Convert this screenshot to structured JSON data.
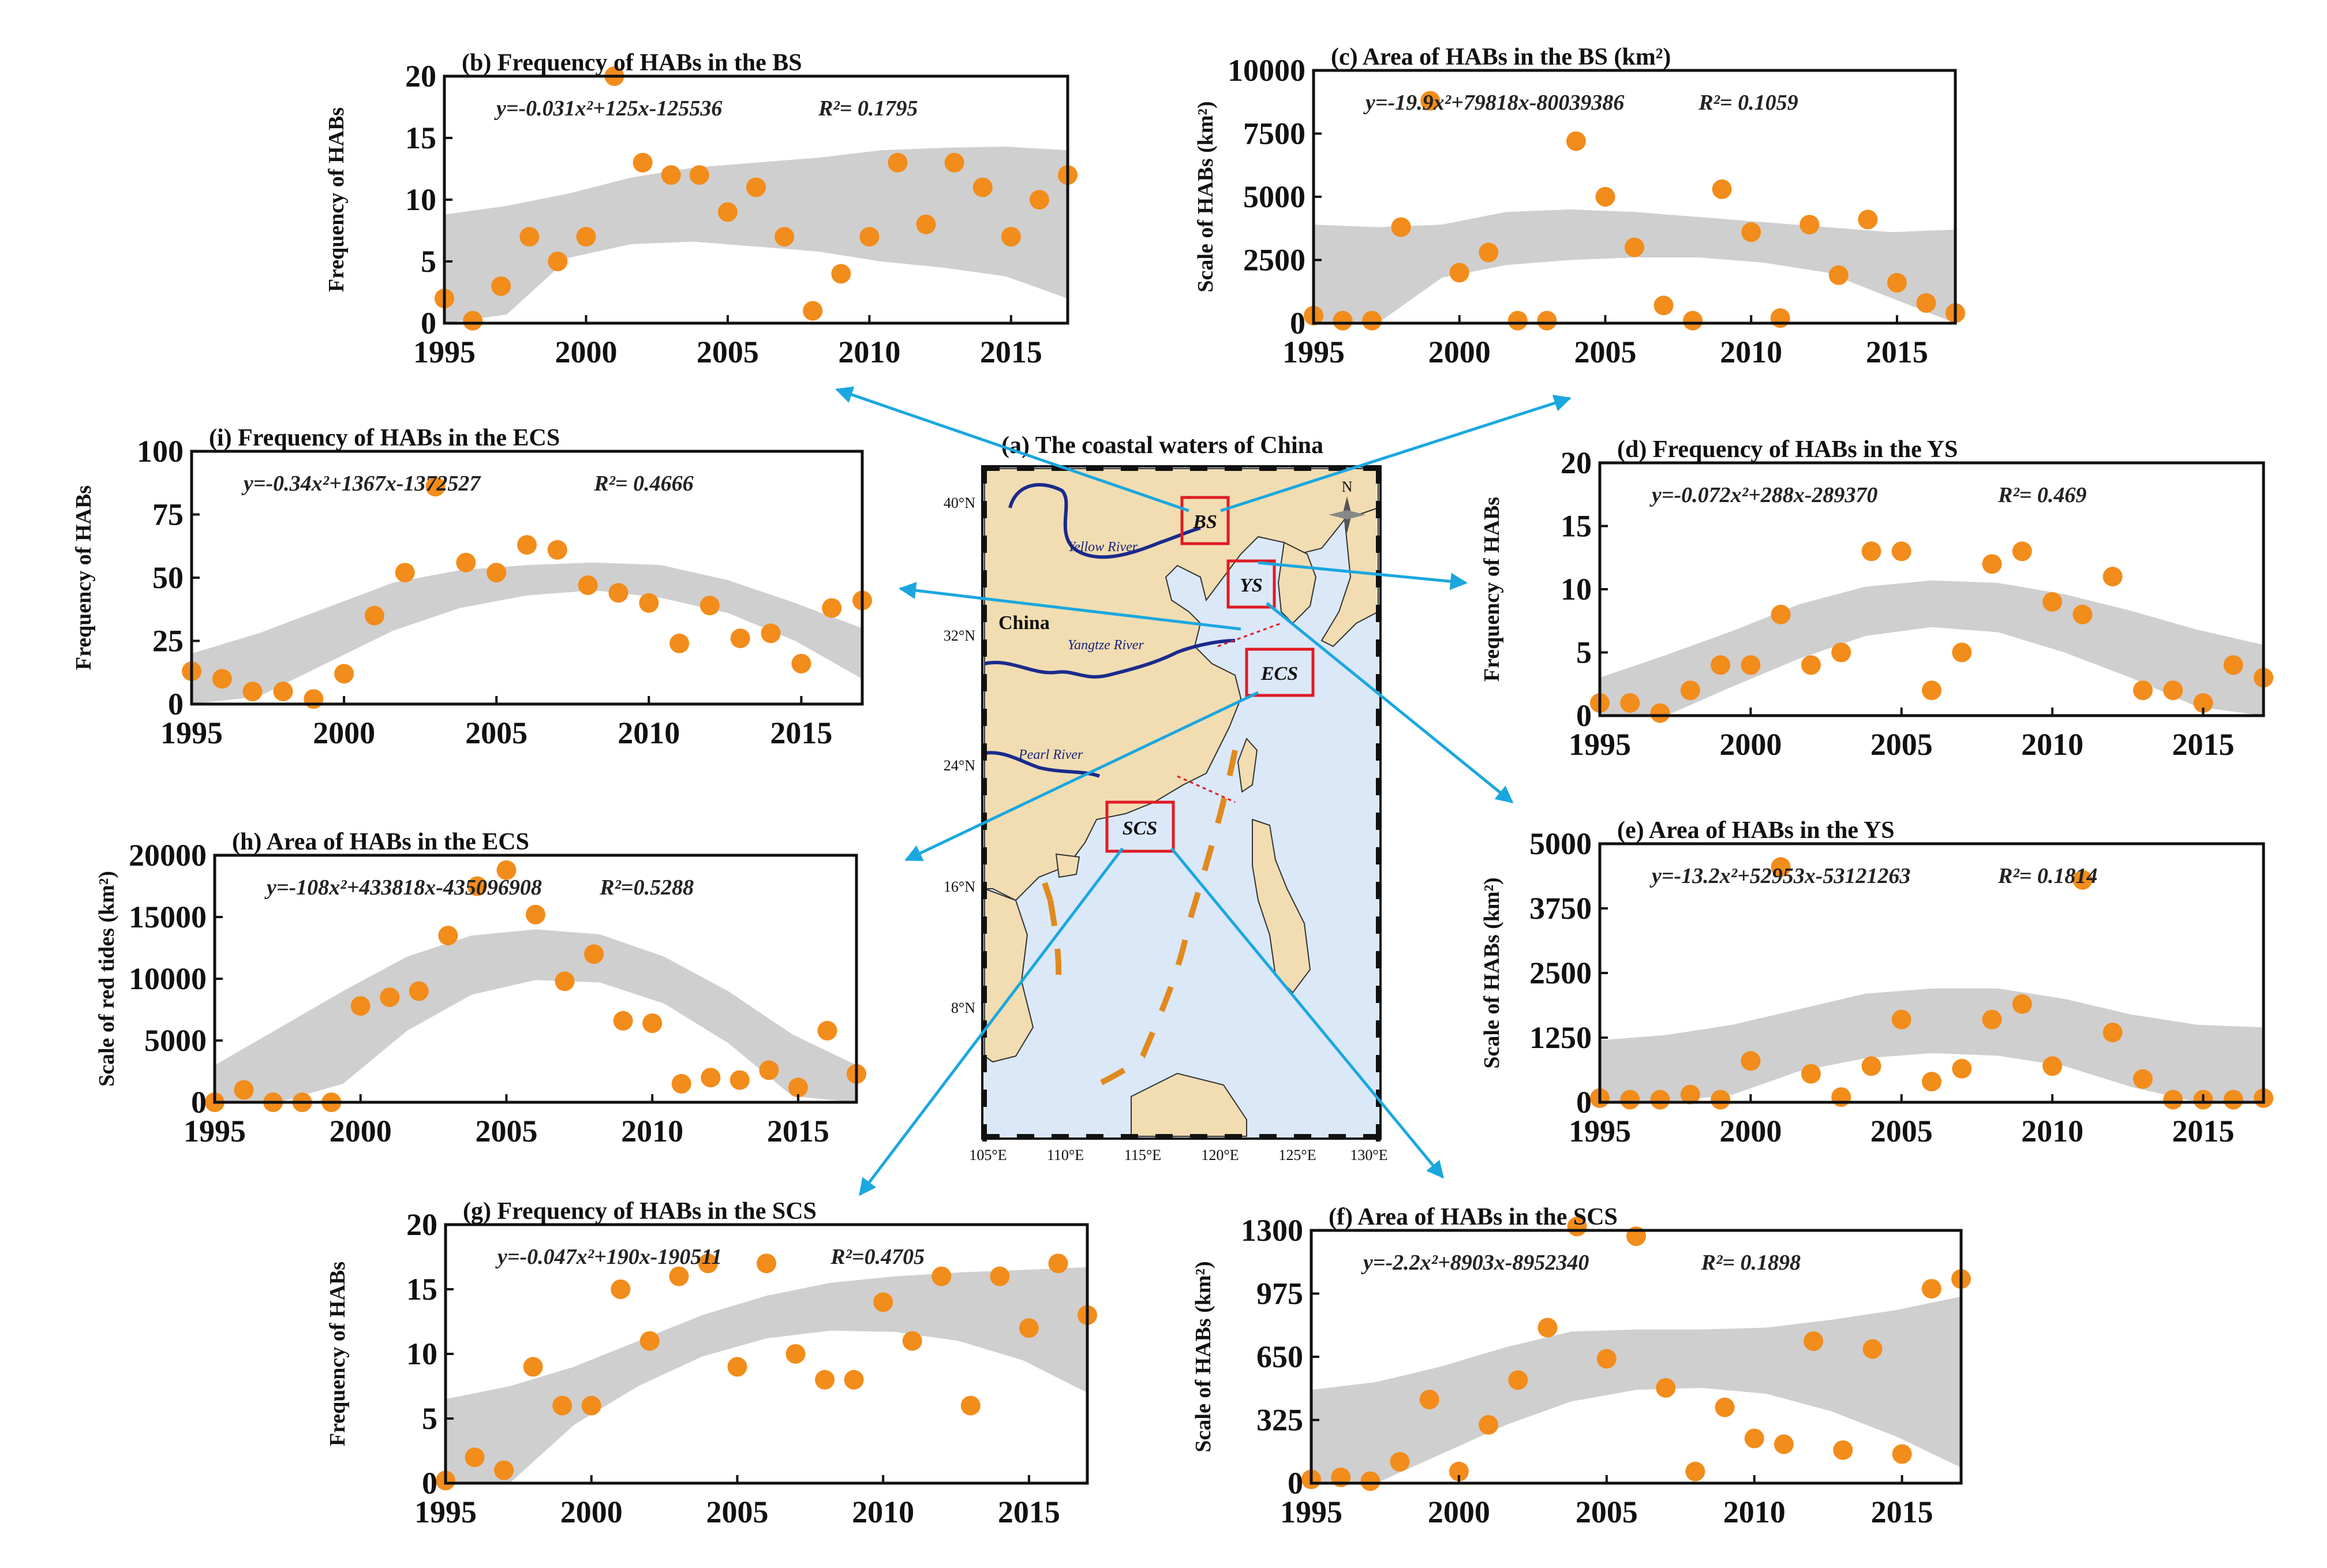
{
  "figure": {
    "map": {
      "title": "(a) The coastal waters of China",
      "country_label": "China",
      "north_label": "N",
      "rivers": [
        "Yellow River",
        "Yangtze River",
        "Pearl River"
      ],
      "regions": [
        "BS",
        "YS",
        "ECS",
        "SCS"
      ],
      "lat_ticks": [
        "40°N",
        "32°N",
        "24°N",
        "16°N",
        "8°N"
      ],
      "lon_ticks": [
        "105°E",
        "110°E",
        "115°E",
        "120°E",
        "125°E",
        "130°E"
      ],
      "colors": {
        "sea": "#dbe8f8",
        "land": "#f1ddb1",
        "river": "#1a2a8c",
        "region_box": "#e01b24"
      }
    },
    "colors": {
      "points": "#f28c1b",
      "fit": "#f28c1b",
      "band": "#cfcfcf",
      "arrow": "#1aa7e0"
    }
  },
  "chart_data": [
    {
      "id": "b",
      "type": "scatter",
      "title": "(b) Frequency of HABs in the BS",
      "xlabel": "",
      "ylabel": "Frequency of HABs",
      "equation": "y=-0.031x²+125x-125536",
      "r2": "R²= 0.1795",
      "xlim": [
        1995,
        2017
      ],
      "ylim": [
        0,
        20
      ],
      "xticks": [
        1995,
        2000,
        2005,
        2010,
        2015
      ],
      "yticks": [
        0,
        5,
        10,
        15,
        20
      ],
      "x": [
        1995,
        1996,
        1997,
        1998,
        1999,
        2000,
        2001,
        2002,
        2003,
        2004,
        2005,
        2006,
        2007,
        2008,
        2009,
        2010,
        2011,
        2012,
        2013,
        2014,
        2015,
        2016,
        2017
      ],
      "y": [
        2,
        0.2,
        3,
        7,
        5,
        7,
        20,
        13,
        12,
        12,
        9,
        11,
        7,
        1,
        4,
        7,
        13,
        8,
        13,
        11,
        7,
        10,
        12
      ],
      "fit": [
        -0.031,
        125,
        -125536
      ],
      "band_lower": [
        0,
        0.7,
        5.3,
        6.4,
        6.6,
        6.2,
        5.8,
        5.0,
        4.5,
        3.8,
        2.0
      ],
      "band_upper": [
        8.8,
        9.5,
        10.5,
        11.8,
        12.6,
        13.0,
        13.4,
        14.0,
        14.2,
        14.3,
        14.0
      ]
    },
    {
      "id": "c",
      "type": "scatter",
      "title": "(c) Area of HABs in the BS (km²)",
      "xlabel": "",
      "ylabel": "Scale of HABs (km²)",
      "equation": "y=-19.9x²+79818x-80039386",
      "r2": "R²= 0.1059",
      "xlim": [
        1995,
        2017
      ],
      "ylim": [
        0,
        10000
      ],
      "xticks": [
        1995,
        2000,
        2005,
        2010,
        2015
      ],
      "yticks": [
        0,
        2500,
        5000,
        7500,
        10000
      ],
      "x": [
        1995,
        1996,
        1997,
        1998,
        1999,
        2000,
        2001,
        2002,
        2003,
        2004,
        2005,
        2006,
        2007,
        2008,
        2009,
        2010,
        2011,
        2012,
        2013,
        2014,
        2015,
        2016,
        2017
      ],
      "y": [
        300,
        100,
        100,
        3800,
        8800,
        2000,
        2800,
        100,
        100,
        7200,
        5000,
        3000,
        700,
        100,
        5300,
        3600,
        200,
        3900,
        1900,
        4100,
        1600,
        800,
        400
      ],
      "fit": [
        -19.9,
        79818,
        -80039386
      ],
      "band_lower": [
        0,
        0,
        1800,
        2300,
        2500,
        2600,
        2600,
        2400,
        2000,
        1000,
        0
      ],
      "band_upper": [
        3900,
        3800,
        3900,
        4400,
        4500,
        4400,
        4200,
        4000,
        3800,
        3600,
        3700
      ]
    },
    {
      "id": "d",
      "type": "scatter",
      "title": "(d) Frequency of HABs in the YS",
      "xlabel": "",
      "ylabel": "Frequency of HABs",
      "equation": "y=-0.072x²+288x-289370",
      "r2": "R²= 0.469",
      "xlim": [
        1995,
        2017
      ],
      "ylim": [
        0,
        20
      ],
      "xticks": [
        1995,
        2000,
        2005,
        2010,
        2015
      ],
      "yticks": [
        0,
        5,
        10,
        15,
        20
      ],
      "x": [
        1995,
        1996,
        1997,
        1998,
        1999,
        2000,
        2001,
        2002,
        2003,
        2004,
        2005,
        2006,
        2007,
        2008,
        2009,
        2010,
        2011,
        2012,
        2013,
        2014,
        2015,
        2016,
        2017
      ],
      "y": [
        1,
        1,
        0.2,
        2,
        4,
        4,
        8,
        4,
        5,
        13,
        13,
        2,
        5,
        12,
        13,
        9,
        8,
        11,
        2,
        2,
        1,
        4,
        3
      ],
      "fit": [
        -0.072,
        288,
        -289370
      ],
      "band_lower": [
        0,
        0,
        2.3,
        4.5,
        6.3,
        7.0,
        6.6,
        5.0,
        3.0,
        0.7,
        0
      ],
      "band_upper": [
        3.0,
        4.8,
        6.7,
        8.8,
        10.2,
        10.7,
        10.5,
        9.6,
        8.3,
        6.8,
        5.6
      ]
    },
    {
      "id": "e",
      "type": "scatter",
      "title": "(e) Area of HABs in the YS",
      "xlabel": "",
      "ylabel": "Scale of HABs (km²)",
      "equation": "y=-13.2x²+52953x-53121263",
      "r2": "R²= 0.1814",
      "xlim": [
        1995,
        2017
      ],
      "ylim": [
        0,
        5000
      ],
      "xticks": [
        1995,
        2000,
        2005,
        2010,
        2015
      ],
      "yticks": [
        0,
        1250,
        2500,
        3750,
        5000
      ],
      "x": [
        1995,
        1996,
        1997,
        1998,
        1999,
        2000,
        2001,
        2002,
        2003,
        2004,
        2005,
        2006,
        2007,
        2008,
        2009,
        2010,
        2011,
        2012,
        2013,
        2014,
        2015,
        2016,
        2017
      ],
      "y": [
        80,
        50,
        50,
        150,
        50,
        800,
        4550,
        550,
        100,
        700,
        1600,
        400,
        650,
        1600,
        1900,
        700,
        4300,
        1350,
        450,
        50,
        50,
        50,
        80
      ],
      "fit": [
        -13.2,
        52953,
        -53121263
      ],
      "band_lower": [
        0,
        0,
        150,
        600,
        850,
        950,
        900,
        700,
        300,
        0,
        0
      ],
      "band_upper": [
        1200,
        1300,
        1500,
        1800,
        2100,
        2200,
        2200,
        2000,
        1700,
        1500,
        1450
      ]
    },
    {
      "id": "f",
      "type": "scatter",
      "title": "(f) Area of HABs in the SCS",
      "xlabel": "",
      "ylabel": "Scale of HABs (km²)",
      "equation": "y=-2.2x²+8903x-8952340",
      "r2": "R²= 0.1898",
      "xlim": [
        1995,
        2017
      ],
      "ylim": [
        0,
        1300
      ],
      "xticks": [
        1995,
        2000,
        2005,
        2010,
        2015
      ],
      "yticks": [
        0,
        325,
        650,
        975,
        1300
      ],
      "x": [
        1995,
        1996,
        1997,
        1998,
        1999,
        2000,
        2001,
        2002,
        2003,
        2004,
        2005,
        2006,
        2007,
        2008,
        2009,
        2010,
        2011,
        2012,
        2013,
        2014,
        2015,
        2016,
        2017
      ],
      "y": [
        20,
        30,
        10,
        110,
        430,
        60,
        300,
        530,
        800,
        1320,
        640,
        1270,
        490,
        60,
        390,
        230,
        200,
        730,
        170,
        690,
        150,
        1000,
        1050
      ],
      "fit": [
        -2.2,
        8903,
        -8952340
      ],
      "band_lower": [
        0,
        0,
        150,
        300,
        420,
        480,
        490,
        460,
        370,
        240,
        80
      ],
      "band_upper": [
        480,
        520,
        600,
        700,
        780,
        790,
        790,
        800,
        840,
        890,
        960
      ]
    },
    {
      "id": "g",
      "type": "scatter",
      "title": "(g) Frequency of HABs in the SCS",
      "xlabel": "",
      "ylabel": "Frequency of HABs",
      "equation": "y=-0.047x²+190x-190511",
      "r2": "R²=0.4705",
      "xlim": [
        1995,
        2017
      ],
      "ylim": [
        0,
        20
      ],
      "xticks": [
        1995,
        2000,
        2005,
        2010,
        2015
      ],
      "yticks": [
        0,
        5,
        10,
        15,
        20
      ],
      "x": [
        1995,
        1996,
        1997,
        1998,
        1999,
        2000,
        2001,
        2002,
        2003,
        2004,
        2005,
        2006,
        2007,
        2008,
        2009,
        2010,
        2011,
        2012,
        2013,
        2014,
        2015,
        2016,
        2017
      ],
      "y": [
        0.2,
        2,
        1,
        9,
        6,
        6,
        15,
        11,
        16,
        17,
        9,
        17,
        10,
        8,
        8,
        14,
        11,
        16,
        6,
        16,
        12,
        17,
        13
      ],
      "fit": [
        -0.047,
        190,
        -190511
      ],
      "band_lower": [
        0,
        0,
        4.5,
        7.5,
        9.8,
        11.2,
        11.8,
        11.7,
        11.0,
        9.5,
        7.0
      ],
      "band_upper": [
        6.5,
        7.5,
        9.0,
        11.0,
        13.0,
        14.5,
        15.5,
        16.0,
        16.3,
        16.5,
        16.7
      ]
    },
    {
      "id": "h",
      "type": "scatter",
      "title": "(h) Area of HABs in the ECS",
      "xlabel": "",
      "ylabel": "Scale of red tides (km²)",
      "equation": "y=-108x²+433818x-435096908",
      "r2": "R²=0.5288",
      "xlim": [
        1995,
        2017
      ],
      "ylim": [
        0,
        20000
      ],
      "xticks": [
        1995,
        2000,
        2005,
        2010,
        2015
      ],
      "yticks": [
        0,
        5000,
        10000,
        15000,
        20000
      ],
      "x": [
        1995,
        1996,
        1997,
        1998,
        1999,
        2000,
        2001,
        2002,
        2003,
        2004,
        2005,
        2006,
        2007,
        2008,
        2009,
        2010,
        2011,
        2012,
        2013,
        2014,
        2015,
        2016,
        2017
      ],
      "y": [
        0,
        1000,
        0,
        0,
        0,
        7800,
        8500,
        9000,
        13500,
        17500,
        18800,
        15200,
        9800,
        12000,
        6600,
        6400,
        1500,
        2000,
        1800,
        2600,
        1200,
        5800,
        2300
      ],
      "fit": [
        -108,
        433818,
        -435096908
      ],
      "band_lower": [
        0,
        0,
        1500,
        5800,
        8700,
        9900,
        9700,
        8000,
        4800,
        500,
        0
      ],
      "band_upper": [
        3000,
        6000,
        9000,
        11800,
        13500,
        14000,
        13600,
        11800,
        9000,
        5500,
        3000
      ]
    },
    {
      "id": "i",
      "type": "scatter",
      "title": "(i) Frequency of HABs in the ECS",
      "xlabel": "",
      "ylabel": "Frequency of HABs",
      "equation": "y=-0.34x²+1367x-1372527",
      "r2": "R²= 0.4666",
      "xlim": [
        1995,
        2017
      ],
      "ylim": [
        0,
        100
      ],
      "xticks": [
        1995,
        2000,
        2005,
        2010,
        2015
      ],
      "yticks": [
        0,
        25,
        50,
        75,
        100
      ],
      "x": [
        1995,
        1996,
        1997,
        1998,
        1999,
        2000,
        2001,
        2002,
        2003,
        2004,
        2005,
        2006,
        2007,
        2008,
        2009,
        2010,
        2011,
        2012,
        2013,
        2014,
        2015,
        2016,
        2017
      ],
      "y": [
        13,
        10,
        5,
        5,
        2,
        12,
        35,
        52,
        86,
        56,
        52,
        63,
        61,
        47,
        44,
        40,
        24,
        39,
        26,
        28,
        16,
        38,
        41
      ],
      "fit": [
        -0.34,
        1367,
        -1372527
      ],
      "band_lower": [
        0,
        3,
        16,
        29,
        38,
        43,
        45,
        42,
        36,
        25,
        10
      ],
      "band_upper": [
        20,
        28,
        38,
        48,
        53,
        55,
        56,
        55,
        49,
        40,
        30
      ]
    }
  ]
}
